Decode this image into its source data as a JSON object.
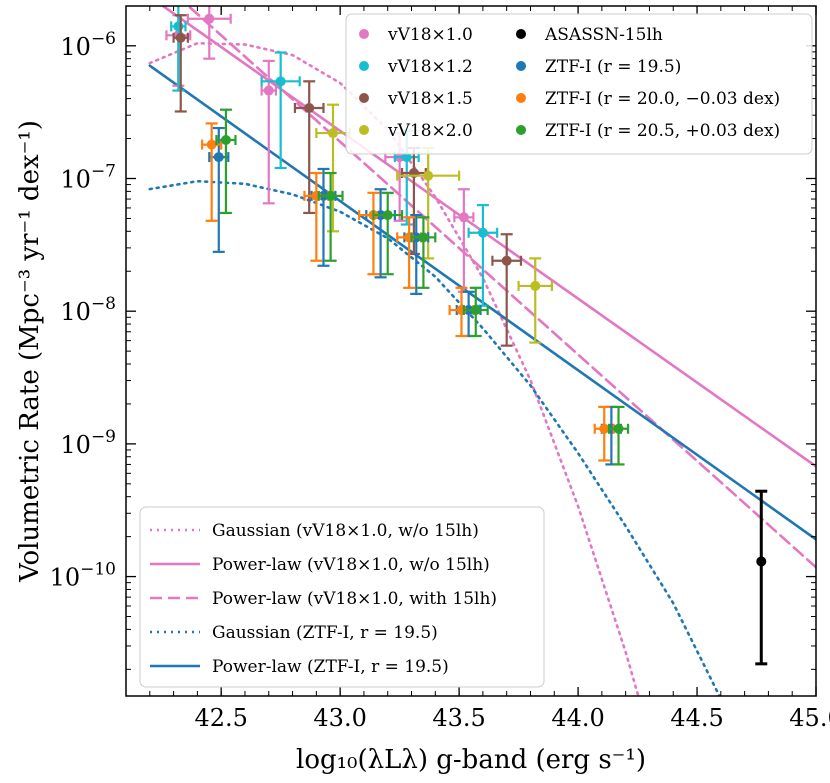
{
  "chart_data": {
    "type": "scatter",
    "xlabel": "log₁₀(λLλ) g-band (erg s⁻¹)",
    "ylabel": "Volumetric Rate (Mpc⁻³ yr⁻¹ dex⁻¹)",
    "xlim": [
      42.1,
      45.0
    ],
    "ylim_log10": [
      -10.9,
      -5.7
    ],
    "yscale": "log",
    "x_ticks": [
      {
        "value": 42.5,
        "label": "42.5"
      },
      {
        "value": 43.0,
        "label": "43.0"
      },
      {
        "value": 43.5,
        "label": "43.5"
      },
      {
        "value": 44.0,
        "label": "44.0"
      },
      {
        "value": 44.5,
        "label": "44.5"
      },
      {
        "value": 45.0,
        "label": "45.0"
      }
    ],
    "y_ticks": [
      {
        "exp": -6,
        "base": "10",
        "sup": "−6"
      },
      {
        "exp": -7,
        "base": "10",
        "sup": "−7"
      },
      {
        "exp": -8,
        "base": "10",
        "sup": "−8"
      },
      {
        "exp": -9,
        "base": "10",
        "sup": "−9"
      },
      {
        "exp": -10,
        "base": "10",
        "sup": "−10"
      }
    ],
    "series": [
      {
        "name": "vV18×1.0",
        "color": "#e377c2",
        "points": [
          {
            "x": 42.32,
            "xerr": 0.05,
            "y": 1.2e-06,
            "ylo": 5e-07,
            "yhi": 1.7e-06
          },
          {
            "x": 42.45,
            "xerr": 0.09,
            "y": 1.6e-06,
            "ylo": 8e-07,
            "yhi": 2.6e-06
          },
          {
            "x": 42.7,
            "xerr": 0.03,
            "y": 4.6e-07,
            "ylo": 6.5e-08,
            "yhi": 7.7e-07
          },
          {
            "x": 43.25,
            "xerr": 0.06,
            "y": 1.45e-07,
            "ylo": 4.8e-08,
            "yhi": 2.2e-07
          },
          {
            "x": 43.52,
            "xerr": 0.04,
            "y": 5.1e-08,
            "ylo": 1.4e-08,
            "yhi": 8.3e-08
          }
        ]
      },
      {
        "name": "vV18×1.2",
        "color": "#17becf",
        "points": [
          {
            "x": 42.32,
            "xerr": 0.03,
            "y": 1.4e-06,
            "ylo": 4.6e-07,
            "yhi": 2.1e-06
          },
          {
            "x": 42.75,
            "xerr": 0.08,
            "y": 5.4e-07,
            "ylo": 1.2e-07,
            "yhi": 8.9e-07
          },
          {
            "x": 43.28,
            "xerr": 0.05,
            "y": 1.45e-07,
            "ylo": 4.5e-08,
            "yhi": 2.3e-07
          },
          {
            "x": 43.6,
            "xerr": 0.06,
            "y": 3.9e-08,
            "ylo": 1.1e-08,
            "yhi": 6.3e-08
          }
        ]
      },
      {
        "name": "vV18×1.5",
        "color": "#8c564b",
        "points": [
          {
            "x": 42.33,
            "xerr": 0.03,
            "y": 1.15e-06,
            "ylo": 3.2e-07,
            "yhi": 1.7e-06
          },
          {
            "x": 42.87,
            "xerr": 0.06,
            "y": 3.4e-07,
            "ylo": 5.5e-08,
            "yhi": 5.4e-07
          },
          {
            "x": 43.31,
            "xerr": 0.05,
            "y": 1.1e-07,
            "ylo": 2.7e-08,
            "yhi": 1.7e-07
          },
          {
            "x": 43.7,
            "xerr": 0.06,
            "y": 2.4e-08,
            "ylo": 5.5e-09,
            "yhi": 3.8e-08
          }
        ]
      },
      {
        "name": "vV18×2.0",
        "color": "#bcbd22",
        "points": [
          {
            "x": 42.97,
            "xerr": 0.07,
            "y": 2.2e-07,
            "ylo": 4e-08,
            "yhi": 3.6e-07
          },
          {
            "x": 43.37,
            "xerr": 0.13,
            "y": 1.05e-07,
            "ylo": 2.5e-08,
            "yhi": 1.7e-07
          },
          {
            "x": 43.82,
            "xerr": 0.07,
            "y": 1.55e-08,
            "ylo": 5.8e-09,
            "yhi": 2.5e-08
          }
        ]
      },
      {
        "name": "ASASSN-15lh",
        "color": "#000000",
        "points": [
          {
            "x": 44.77,
            "xerr": 0,
            "y": 1.3e-10,
            "ylo": 2.2e-11,
            "yhi": 4.4e-10
          }
        ]
      },
      {
        "name": "ZTF-I (r = 19.5)",
        "color": "#1f77b4",
        "points": [
          {
            "x": 42.49,
            "xerr": 0.04,
            "y": 1.45e-07,
            "ylo": 2.8e-08,
            "yhi": 2.4e-07
          },
          {
            "x": 42.93,
            "xerr": 0.05,
            "y": 7.4e-08,
            "ylo": 2.2e-08,
            "yhi": 1.18e-07
          },
          {
            "x": 43.17,
            "xerr": 0.06,
            "y": 5.3e-08,
            "ylo": 1.8e-08,
            "yhi": 8.3e-08
          },
          {
            "x": 43.32,
            "xerr": 0.05,
            "y": 3.6e-08,
            "ylo": 1.35e-08,
            "yhi": 5.3e-08
          },
          {
            "x": 43.54,
            "xerr": 0.05,
            "y": 1.02e-08,
            "ylo": 6.5e-09,
            "yhi": 1.4e-08
          },
          {
            "x": 44.14,
            "xerr": 0.04,
            "y": 1.3e-09,
            "ylo": 7e-10,
            "yhi": 1.9e-09
          }
        ]
      },
      {
        "name": "ZTF-I (r = 20.0, −0.03 dex)",
        "color": "#ff7f0e",
        "points": [
          {
            "x": 42.46,
            "xerr": 0.04,
            "y": 1.8e-07,
            "ylo": 4.8e-08,
            "yhi": 2.6e-07
          },
          {
            "x": 42.9,
            "xerr": 0.05,
            "y": 7.4e-08,
            "ylo": 2.4e-08,
            "yhi": 1.1e-07
          },
          {
            "x": 43.14,
            "xerr": 0.06,
            "y": 5.3e-08,
            "ylo": 1.9e-08,
            "yhi": 7.8e-08
          },
          {
            "x": 43.29,
            "xerr": 0.05,
            "y": 3.6e-08,
            "ylo": 1.5e-08,
            "yhi": 5.1e-08
          },
          {
            "x": 43.51,
            "xerr": 0.05,
            "y": 1.02e-08,
            "ylo": 6.5e-09,
            "yhi": 1.5e-08
          },
          {
            "x": 44.11,
            "xerr": 0.04,
            "y": 1.3e-09,
            "ylo": 7.5e-10,
            "yhi": 1.9e-09
          }
        ]
      },
      {
        "name": "ZTF-I (r = 20.5, +0.03 dex)",
        "color": "#2ca02c",
        "points": [
          {
            "x": 42.52,
            "xerr": 0.04,
            "y": 1.95e-07,
            "ylo": 5.5e-08,
            "yhi": 3.3e-07
          },
          {
            "x": 42.96,
            "xerr": 0.05,
            "y": 7.4e-08,
            "ylo": 2.4e-08,
            "yhi": 1.1e-07
          },
          {
            "x": 43.2,
            "xerr": 0.06,
            "y": 5.3e-08,
            "ylo": 1.9e-08,
            "yhi": 7.8e-08
          },
          {
            "x": 43.35,
            "xerr": 0.05,
            "y": 3.6e-08,
            "ylo": 1.5e-08,
            "yhi": 5.1e-08
          },
          {
            "x": 43.57,
            "xerr": 0.05,
            "y": 1.02e-08,
            "ylo": 6.5e-09,
            "yhi": 1.5e-08
          },
          {
            "x": 44.17,
            "xerr": 0.04,
            "y": 1.3e-09,
            "ylo": 7e-10,
            "yhi": 1.9e-09
          }
        ]
      }
    ],
    "fits": [
      {
        "name": "Gaussian (vV18×1.0, w/o 15lh)",
        "color": "#e377c2",
        "style": "dotted",
        "x": [
          42.2,
          42.4,
          42.6,
          42.8,
          43.0,
          43.2,
          43.4,
          43.6,
          43.8,
          44.0,
          44.2,
          44.35
        ],
        "log10y": [
          -6.13,
          -5.98,
          -5.99,
          -6.07,
          -6.28,
          -6.63,
          -7.14,
          -7.75,
          -8.52,
          -9.47,
          -10.57,
          -11.5
        ]
      },
      {
        "name": "Power-law (vV18×1.0, w/o 15lh)",
        "color": "#e377c2",
        "style": "solid",
        "x": [
          42.2,
          45.0
        ],
        "log10y": [
          -5.63,
          -9.17
        ]
      },
      {
        "name": "Power-law (vV18×1.0, with 15lh)",
        "color": "#e377c2",
        "style": "dashed",
        "x": [
          42.2,
          45.0
        ],
        "log10y": [
          -5.44,
          -9.93
        ]
      },
      {
        "name": "Gaussian (ZTF-I, r = 19.5)",
        "color": "#1f77b4",
        "style": "dotted",
        "x": [
          42.2,
          42.4,
          42.6,
          42.8,
          43.0,
          43.2,
          43.4,
          43.6,
          43.8,
          44.0,
          44.2,
          44.4,
          44.6,
          44.72
        ],
        "log10y": [
          -7.08,
          -7.02,
          -7.04,
          -7.12,
          -7.25,
          -7.45,
          -7.74,
          -8.13,
          -8.56,
          -9.07,
          -9.62,
          -10.2,
          -10.92,
          -11.5
        ]
      },
      {
        "name": "Power-law (ZTF-I, r = 19.5)",
        "color": "#1f77b4",
        "style": "solid",
        "x": [
          42.2,
          45.0
        ],
        "log10y": [
          -6.15,
          -9.72
        ]
      }
    ]
  }
}
